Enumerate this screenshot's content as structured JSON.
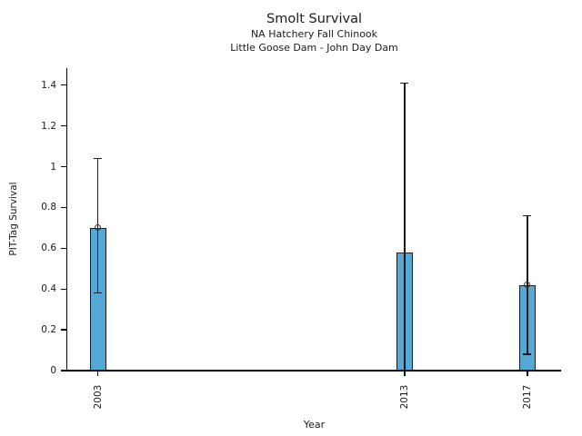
{
  "chart_data": {
    "type": "bar",
    "title": "Smolt Survival",
    "subtitle": [
      "NA Hatchery Fall Chinook",
      "Little Goose Dam - John Day Dam"
    ],
    "xlabel": "Year",
    "ylabel": "PIT-Tag Survival",
    "categories": [
      "2003",
      "2013",
      "2017"
    ],
    "years": [
      2003,
      2013,
      2017
    ],
    "values": [
      0.7,
      0.58,
      0.42
    ],
    "error_low": [
      0.38,
      0,
      0.08
    ],
    "error_high": [
      1.04,
      1.41,
      0.76
    ],
    "point_markers": [
      true,
      false,
      true
    ],
    "xlim": [
      2002.0,
      2018.1
    ],
    "ylim": [
      0,
      1.4833
    ],
    "yticks": [
      0,
      0.2,
      0.4,
      0.6,
      0.8,
      1,
      1.2,
      1.4
    ],
    "ytick_labels": [
      "0",
      "0.2",
      "0.4",
      "0.6",
      "0.8",
      "1",
      "1.2",
      "1.4"
    ],
    "grid": false,
    "legend": "none",
    "colors": {
      "bar_fill": "#56a9d6",
      "bar_edge": "#1a1a1a",
      "error_bar": "#1a1a1a",
      "marker_edge": "#333333",
      "axis": "#000000",
      "text": "#1a1a1a"
    }
  }
}
